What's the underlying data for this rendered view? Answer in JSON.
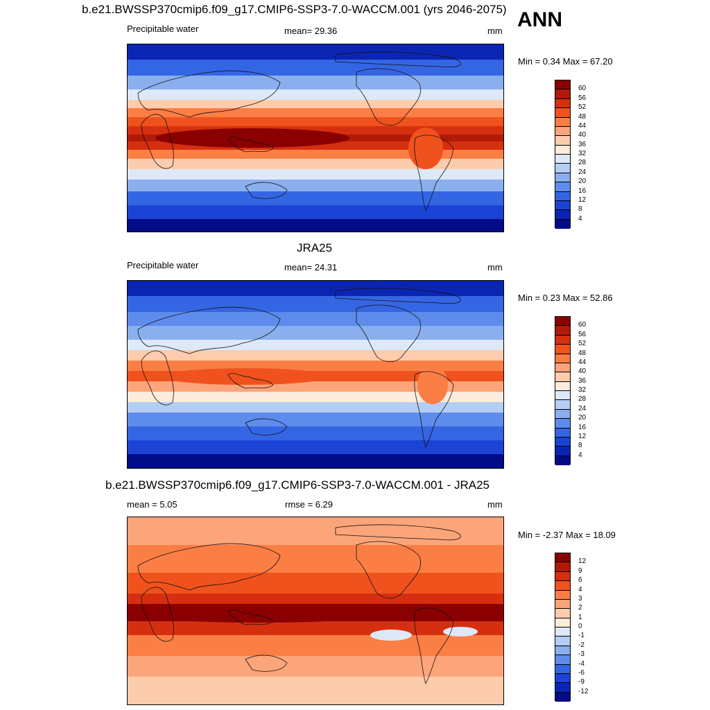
{
  "header": {
    "title": "b.e21.BWSSP370cmip6.f09_g17.CMIP6-SSP3-7.0-WACCM.001 (yrs 2046-2075)",
    "season": "ANN"
  },
  "panels": [
    {
      "title": "",
      "left": "Precipitable water",
      "center": "mean=  29.36",
      "right": "mm",
      "minmax": "Min =   0.34 Max =  67.20",
      "field": "model",
      "colorbar": {
        "labels": [
          "60",
          "56",
          "52",
          "48",
          "44",
          "40",
          "36",
          "32",
          "28",
          "24",
          "20",
          "16",
          "12",
          "8",
          "4"
        ],
        "colors": [
          "#8a0000",
          "#b01a08",
          "#d62f10",
          "#f0521e",
          "#fb7e45",
          "#fca57a",
          "#fdccad",
          "#fdecdc",
          "#dde8f8",
          "#b4cdf5",
          "#8aafee",
          "#5e8cec",
          "#3466e4",
          "#1b44d6",
          "#0b25b3",
          "#020b88"
        ]
      }
    },
    {
      "title": "JRA25",
      "left": "Precipitable water",
      "center": "mean=  24.31",
      "right": "mm",
      "minmax": "Min =   0.23 Max =  52.86",
      "field": "obs",
      "colorbar": {
        "labels": [
          "60",
          "56",
          "52",
          "48",
          "44",
          "40",
          "36",
          "32",
          "28",
          "24",
          "20",
          "16",
          "12",
          "8",
          "4"
        ],
        "colors": [
          "#8a0000",
          "#b01a08",
          "#d62f10",
          "#f0521e",
          "#fb7e45",
          "#fca57a",
          "#fdccad",
          "#fdecdc",
          "#dde8f8",
          "#b4cdf5",
          "#8aafee",
          "#5e8cec",
          "#3466e4",
          "#1b44d6",
          "#0b25b3",
          "#020b88"
        ]
      }
    },
    {
      "title": "b.e21.BWSSP370cmip6.f09_g17.CMIP6-SSP3-7.0-WACCM.001 - JRA25",
      "left": "mean =   5.05",
      "center": "rmse =   6.29",
      "right": "mm",
      "minmax": "Min =  -2.37 Max =  18.09",
      "field": "diff",
      "colorbar": {
        "labels": [
          "12",
          "9",
          "6",
          "4",
          "3",
          "2",
          "1",
          "0",
          "-1",
          "-2",
          "-3",
          "-4",
          "-6",
          "-9",
          "-12"
        ],
        "colors": [
          "#8a0000",
          "#b01a08",
          "#d62f10",
          "#f0521e",
          "#fb7e45",
          "#fca57a",
          "#fdccad",
          "#fdecdc",
          "#dde8f8",
          "#b4cdf5",
          "#8aafee",
          "#5e8cec",
          "#3466e4",
          "#1b44d6",
          "#0b25b3",
          "#020b88"
        ]
      }
    }
  ]
}
